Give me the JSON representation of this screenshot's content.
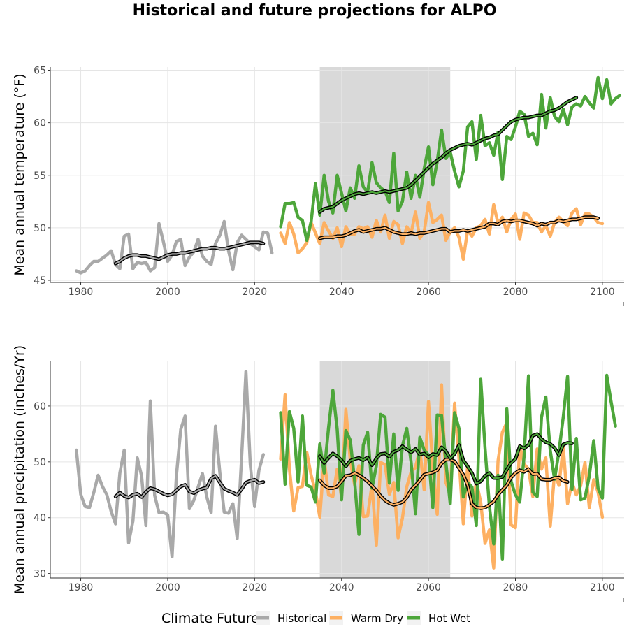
{
  "title": "Historical and future projections for ALPO",
  "colors": {
    "historical": "#A9A9A9",
    "warm_dry": "#FDB062",
    "hot_wet": "#4DA63A",
    "smooth_outline": "#000000",
    "reference_band": "#D9D9D9",
    "grid": "#E5E5E5"
  },
  "legend": {
    "title": "Climate Future",
    "items": [
      {
        "key": "historical",
        "label": "Historical"
      },
      {
        "key": "warm_dry",
        "label": "Warm Dry"
      },
      {
        "key": "hot_wet",
        "label": "Hot Wet"
      }
    ],
    "placement": "bottom"
  },
  "chart_data": [
    {
      "type": "line",
      "ylabel": "Mean annual temperature (°F)",
      "xlabel": "",
      "xlim": [
        1973,
        2105
      ],
      "ylim": [
        44.8,
        65.3
      ],
      "xticks": [
        1980,
        2000,
        2020,
        2040,
        2060,
        2080,
        2100
      ],
      "yticks": [
        45,
        50,
        55,
        60,
        65
      ],
      "grid": true,
      "reference_band": [
        2035,
        2065
      ],
      "series": [
        {
          "key": "historical",
          "name": "Historical",
          "x_start": 1979,
          "values": [
            45.9,
            45.7,
            45.9,
            46.4,
            46.8,
            46.8,
            47.1,
            47.4,
            47.8,
            46.5,
            46.1,
            49.2,
            49.4,
            46.1,
            46.7,
            46.6,
            46.7,
            45.9,
            46.2,
            50.4,
            48.7,
            46.8,
            47.4,
            48.7,
            48.9,
            46.4,
            47.2,
            47.7,
            48.9,
            47.3,
            46.8,
            46.5,
            48.5,
            49.3,
            50.6,
            47.8,
            46.0,
            48.6,
            49.3,
            48.9,
            48.5,
            48.2,
            47.9,
            49.6,
            49.5,
            47.6
          ]
        },
        {
          "key": "historical",
          "name": "Historical",
          "smooth": true,
          "x_start": 1988,
          "values": [
            46.6,
            46.8,
            47.1,
            47.3,
            47.4,
            47.4,
            47.3,
            47.3,
            47.2,
            47.1,
            47.0,
            47.2,
            47.4,
            47.5,
            47.5,
            47.6,
            47.6,
            47.7,
            47.8,
            47.9,
            48.0,
            48.0,
            48.1,
            48.1,
            48.0,
            48.0,
            48.1,
            48.2,
            48.3,
            48.4,
            48.5,
            48.6,
            48.6,
            48.6,
            48.5
          ]
        },
        {
          "key": "warm_dry",
          "name": "Warm Dry",
          "x_start": 2026,
          "values": [
            49.5,
            48.5,
            50.5,
            49.4,
            47.6,
            48.0,
            48.6,
            50.5,
            49.5,
            48.5,
            50.5,
            49.7,
            49.0,
            50.0,
            48.2,
            50.1,
            49.4,
            49.4,
            50.1,
            49.9,
            50.1,
            49.1,
            50.7,
            49.6,
            51.2,
            49.0,
            50.6,
            50.3,
            48.5,
            50.1,
            49.5,
            51.5,
            49.0,
            49.6,
            52.4,
            50.5,
            50.8,
            51.2,
            48.8,
            49.6,
            50.0,
            49.1,
            47.0,
            49.8,
            49.2,
            50.0,
            50.2,
            50.8,
            49.4,
            52.2,
            50.4,
            51.0,
            49.6,
            50.8,
            51.3,
            48.9,
            51.4,
            51.2,
            50.5,
            50.5,
            49.6,
            50.2,
            49.2,
            50.5,
            51.0,
            50.6,
            50.2,
            51.4,
            51.8,
            50.3,
            51.3,
            51.3,
            51.0,
            50.5,
            50.4
          ]
        },
        {
          "key": "warm_dry",
          "name": "Warm Dry",
          "smooth": true,
          "x_start": 2035,
          "values": [
            49.0,
            49.1,
            49.1,
            49.1,
            49.2,
            49.2,
            49.3,
            49.5,
            49.7,
            49.8,
            49.6,
            49.7,
            49.8,
            49.9,
            49.9,
            50.0,
            49.8,
            49.6,
            49.5,
            49.4,
            49.4,
            49.5,
            49.4,
            49.5,
            49.5,
            49.6,
            49.7,
            49.8,
            49.9,
            49.9,
            49.6,
            49.7,
            49.7,
            49.8,
            49.7,
            49.8,
            49.9,
            50.0,
            50.1,
            50.4,
            50.4,
            50.3,
            50.6,
            50.7,
            50.6,
            50.7,
            50.7,
            50.6,
            50.5,
            50.4,
            50.2,
            50.4,
            50.3,
            50.5,
            50.5,
            50.7,
            50.6,
            50.7,
            50.8,
            50.8,
            50.9,
            51.0,
            51.0,
            51.0,
            50.9
          ]
        },
        {
          "key": "hot_wet",
          "name": "Hot Wet",
          "x_start": 2026,
          "values": [
            50.1,
            52.3,
            52.3,
            52.4,
            51.0,
            50.7,
            48.8,
            50.6,
            54.2,
            51.2,
            55.0,
            52.5,
            51.4,
            55.0,
            53.3,
            51.6,
            53.8,
            52.8,
            55.9,
            53.9,
            53.4,
            56.2,
            54.3,
            53.8,
            53.5,
            52.4,
            57.1,
            51.6,
            52.5,
            55.3,
            52.8,
            55.0,
            52.9,
            55.6,
            57.7,
            54.1,
            56.3,
            59.3,
            56.6,
            57.2,
            55.4,
            53.9,
            55.4,
            59.6,
            60.1,
            56.5,
            60.7,
            57.8,
            58.1,
            56.9,
            59.1,
            54.6,
            58.7,
            58.4,
            59.6,
            61.1,
            60.8,
            58.7,
            59.0,
            57.9,
            62.7,
            59.5,
            62.4,
            60.6,
            60.1,
            61.3,
            59.8,
            61.5,
            61.8,
            61.6,
            62.5,
            61.9,
            61.4,
            64.3,
            62.3,
            64.1,
            61.8,
            62.3,
            62.6
          ]
        },
        {
          "key": "hot_wet",
          "name": "Hot Wet",
          "smooth": true,
          "x_start": 2035,
          "values": [
            51.5,
            51.8,
            51.9,
            52.0,
            52.3,
            52.6,
            52.8,
            53.0,
            53.2,
            53.3,
            53.2,
            53.3,
            53.4,
            53.3,
            53.4,
            53.5,
            53.4,
            53.5,
            53.6,
            53.7,
            53.8,
            54.1,
            54.5,
            54.9,
            55.3,
            55.7,
            56.1,
            56.4,
            56.7,
            57.1,
            57.4,
            57.6,
            57.8,
            57.9,
            58.0,
            57.9,
            58.1,
            58.3,
            58.5,
            58.6,
            58.8,
            58.9,
            59.3,
            59.7,
            60.1,
            60.3,
            60.4,
            60.5,
            60.5,
            60.6,
            60.7,
            60.7,
            60.9,
            61.1,
            61.2,
            61.4,
            61.7,
            62.0,
            62.2,
            62.4
          ]
        }
      ]
    },
    {
      "type": "line",
      "ylabel": "Mean annual precipitation (inches/Yr)",
      "xlabel": "",
      "xlim": [
        1973,
        2105
      ],
      "ylim": [
        29.2,
        68.0
      ],
      "xticks": [
        1980,
        2000,
        2020,
        2040,
        2060,
        2080,
        2100
      ],
      "yticks": [
        30,
        40,
        50,
        60
      ],
      "grid": true,
      "reference_band": [
        2035,
        2065
      ],
      "series": [
        {
          "key": "historical",
          "name": "Historical",
          "x_start": 1979,
          "values": [
            52.1,
            44.2,
            42.0,
            41.8,
            44.5,
            47.6,
            45.6,
            44.1,
            41.1,
            38.9,
            48.0,
            52.1,
            35.5,
            39.4,
            50.7,
            47.5,
            38.6,
            60.9,
            44.0,
            40.9,
            41.0,
            40.5,
            33.0,
            47.5,
            55.8,
            58.2,
            41.6,
            43.1,
            45.5,
            47.9,
            43.7,
            40.9,
            56.4,
            48.0,
            41.0,
            40.8,
            42.5,
            36.3,
            50.8,
            66.2,
            49.5,
            42.0,
            48.5,
            51.3
          ]
        },
        {
          "key": "historical",
          "name": "Historical",
          "smooth": true,
          "x_start": 1988,
          "values": [
            43.8,
            44.5,
            43.9,
            43.6,
            44.1,
            44.3,
            43.7,
            44.6,
            45.3,
            45.1,
            44.7,
            44.3,
            44.0,
            44.2,
            44.9,
            45.6,
            45.9,
            44.7,
            44.4,
            44.9,
            45.2,
            45.4,
            47.0,
            47.5,
            46.3,
            45.2,
            44.8,
            44.5,
            44.1,
            45.1,
            46.3,
            46.6,
            46.8,
            46.2,
            46.4
          ]
        },
        {
          "key": "warm_dry",
          "name": "Warm Dry",
          "x_start": 2026,
          "values": [
            50.5,
            62.0,
            48.8,
            41.2,
            45.4,
            45.6,
            51.7,
            47.6,
            44.7,
            40.1,
            50.6,
            44.1,
            43.8,
            48.7,
            43.7,
            59.4,
            50.2,
            45.9,
            49.3,
            40.2,
            40.3,
            46.0,
            35.1,
            49.9,
            49.5,
            44.2,
            46.3,
            36.4,
            39.9,
            45.5,
            48.2,
            49.0,
            52.3,
            45.0,
            60.8,
            48.9,
            40.6,
            63.8,
            46.3,
            44.3,
            60.5,
            50.7,
            38.9,
            49.3,
            40.3,
            46.5,
            42.8,
            35.4,
            37.8,
            31.0,
            50.2,
            55.3,
            57.0,
            38.7,
            38.2,
            52.9,
            49.6,
            48.7,
            43.8,
            52.3,
            48.7,
            50.7,
            38.5,
            48.1,
            45.8,
            52.7,
            42.5,
            46.3,
            44.1,
            45.7,
            49.9,
            41.8,
            46.8,
            44.6,
            40.1
          ]
        },
        {
          "key": "warm_dry",
          "name": "Warm Dry",
          "smooth": true,
          "x_start": 2035,
          "values": [
            46.7,
            45.8,
            45.3,
            45.3,
            45.6,
            46.5,
            47.5,
            47.6,
            48.0,
            47.6,
            47.1,
            46.5,
            45.7,
            44.9,
            43.9,
            43.1,
            42.6,
            42.3,
            42.5,
            42.8,
            43.6,
            45.0,
            45.8,
            46.7,
            47.7,
            47.9,
            48.1,
            48.5,
            49.7,
            50.4,
            50.4,
            50.1,
            48.9,
            47.7,
            45.8,
            42.5,
            41.8,
            41.7,
            41.8,
            42.3,
            42.9,
            44.1,
            45.0,
            45.8,
            47.2,
            48.0,
            48.5,
            48.2,
            48.7,
            47.8,
            47.9,
            46.9,
            46.8,
            46.8,
            47.1,
            47.2,
            46.6,
            46.4
          ]
        },
        {
          "key": "hot_wet",
          "name": "Hot Wet",
          "x_start": 2026,
          "values": [
            58.8,
            46.0,
            59.0,
            56.0,
            46.4,
            58.2,
            45.8,
            45.5,
            42.8,
            53.2,
            48.0,
            56.1,
            62.8,
            55.8,
            43.2,
            55.6,
            53.9,
            46.6,
            37.0,
            53.0,
            55.3,
            45.3,
            49.3,
            58.5,
            58.0,
            46.2,
            55.0,
            44.9,
            52.8,
            56.0,
            50.0,
            40.7,
            54.4,
            52.1,
            51.2,
            41.8,
            58.4,
            58.3,
            49.9,
            42.5,
            58.8,
            56.0,
            43.7,
            46.3,
            45.5,
            38.6,
            64.8,
            52.5,
            42.1,
            35.3,
            47.6,
            32.6,
            59.5,
            46.5,
            44.1,
            42.8,
            51.0,
            65.4,
            44.6,
            43.8,
            58.0,
            61.6,
            52.0,
            46.9,
            51.8,
            58.0,
            65.3,
            45.1,
            54.2,
            43.2,
            43.5,
            47.5,
            53.8,
            45.3,
            43.5,
            65.5,
            60.8,
            56.4
          ]
        },
        {
          "key": "hot_wet",
          "name": "Hot Wet",
          "smooth": true,
          "x_start": 2035,
          "values": [
            51.0,
            49.8,
            50.7,
            51.5,
            51.0,
            50.3,
            49.2,
            50.2,
            50.5,
            50.7,
            50.3,
            50.8,
            49.4,
            50.6,
            51.4,
            51.5,
            50.9,
            51.8,
            52.1,
            52.8,
            52.2,
            51.7,
            52.3,
            51.3,
            51.5,
            50.8,
            51.4,
            51.2,
            52.6,
            51.9,
            50.6,
            51.4,
            53.0,
            50.3,
            49.2,
            48.0,
            46.1,
            46.5,
            47.5,
            48.0,
            47.1,
            47.1,
            47.3,
            48.6,
            49.8,
            50.5,
            52.8,
            52.4,
            53.0,
            54.7,
            55.0,
            54.1,
            53.5,
            53.2,
            52.5,
            51.2,
            53.1,
            53.4,
            53.3
          ]
        }
      ]
    }
  ]
}
